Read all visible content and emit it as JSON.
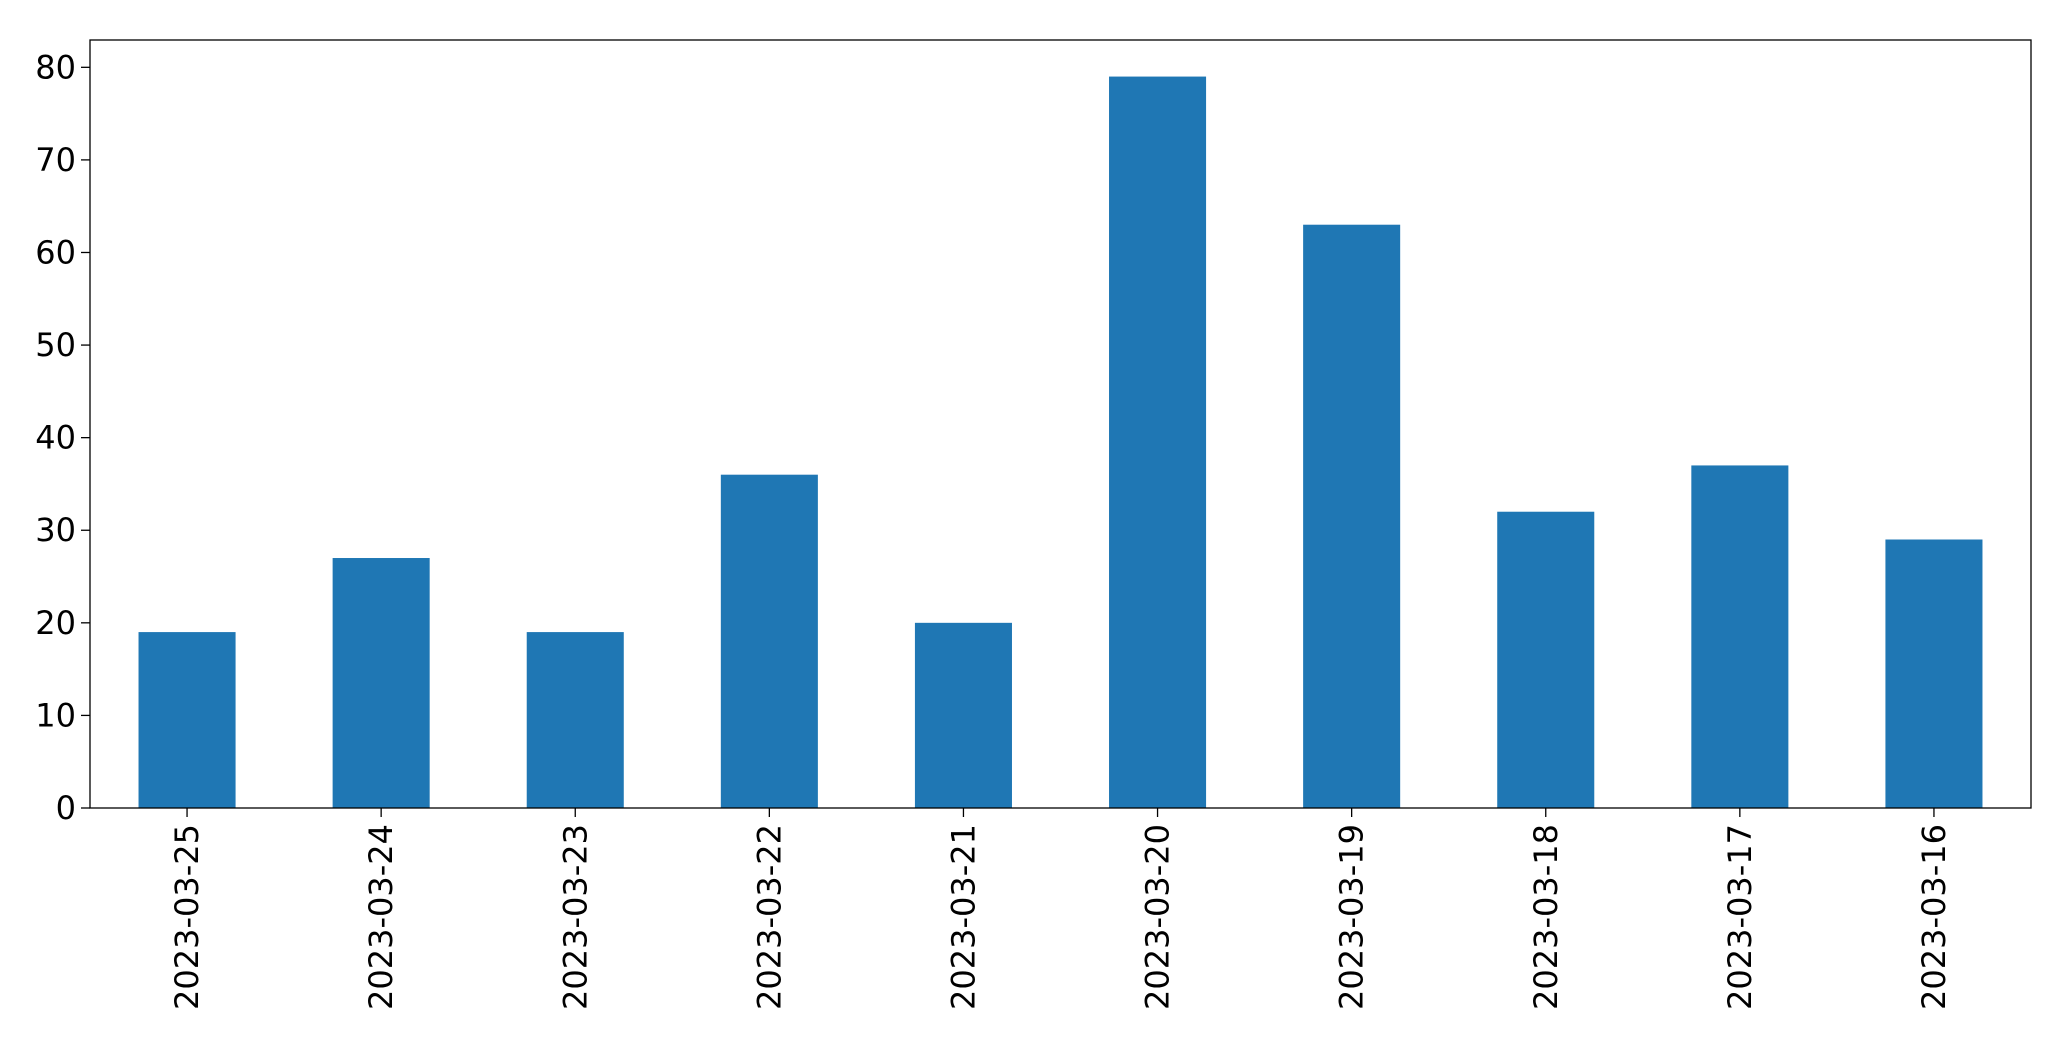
{
  "chart_data": {
    "type": "bar",
    "categories": [
      "2023-03-25",
      "2023-03-24",
      "2023-03-23",
      "2023-03-22",
      "2023-03-21",
      "2023-03-20",
      "2023-03-19",
      "2023-03-18",
      "2023-03-17",
      "2023-03-16"
    ],
    "values": [
      19,
      27,
      19,
      36,
      20,
      79,
      63,
      32,
      37,
      29
    ],
    "color": "#1f77b4",
    "ylim": [
      0,
      82.95
    ],
    "yticks": [
      0,
      10,
      20,
      30,
      40,
      50,
      60,
      70,
      80
    ],
    "grid": false
  }
}
